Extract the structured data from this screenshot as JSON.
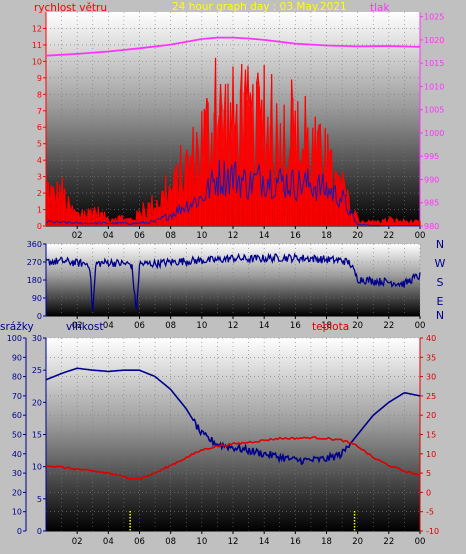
{
  "colors": {
    "background": "#c0c0c0",
    "wind": "#ff0000",
    "gust": "#1a1ab0",
    "pressure": "#ff33ff",
    "direction": "#00008b",
    "humidity": "#00008b",
    "temperature": "#dd0000",
    "rain": "#ffff00"
  },
  "chart_data": [
    {
      "type": "line",
      "title": "24 hour graph day : 03.May.2021",
      "series_labels": {
        "left": "rychlost větru",
        "right": "tlak"
      },
      "x_ticks": [
        "02",
        "04",
        "06",
        "08",
        "10",
        "12",
        "14",
        "16",
        "18",
        "20",
        "22",
        "00"
      ],
      "xlim_hours": [
        0,
        24
      ],
      "left_axis": {
        "ticks": [
          "0",
          "1",
          "2",
          "3",
          "4",
          "5",
          "6",
          "7",
          "8",
          "9",
          "10",
          "11",
          "12"
        ],
        "ylim": [
          0,
          13
        ]
      },
      "right_axis": {
        "ticks": [
          "980",
          "985",
          "990",
          "995",
          "1000",
          "1005",
          "1010",
          "1015",
          "1020",
          "1025"
        ],
        "ylim": [
          980,
          1026
        ]
      },
      "pressure": {
        "x": [
          0,
          2,
          4,
          6,
          8,
          10,
          11,
          12,
          13,
          14,
          16,
          18,
          20,
          22,
          24
        ],
        "y": [
          1016.6,
          1017,
          1017.5,
          1018.2,
          1019,
          1020.2,
          1020.5,
          1020.5,
          1020.3,
          1020,
          1019.2,
          1018.8,
          1018.6,
          1018.7,
          1018.5
        ]
      },
      "wind_envelope": {
        "x": [
          0,
          0.5,
          1,
          1.5,
          2,
          2.5,
          3,
          3.5,
          4,
          4.5,
          5,
          5.5,
          6,
          6.5,
          7,
          7.5,
          8,
          8.5,
          9,
          9.5,
          10,
          10.5,
          11,
          11.5,
          12,
          12.5,
          13,
          13.5,
          14,
          14.5,
          15,
          15.5,
          16,
          16.5,
          17,
          17.5,
          18,
          18.5,
          19,
          19.5,
          20,
          21,
          22,
          23,
          24
        ],
        "y": [
          3.5,
          2.5,
          3,
          1.5,
          1,
          0.8,
          1.5,
          1,
          0.6,
          0.8,
          0.5,
          0.6,
          1,
          1.5,
          2,
          2.5,
          3,
          4,
          5,
          6,
          7.5,
          8.5,
          9,
          9.5,
          9,
          8.5,
          9,
          8,
          8.5,
          8,
          7.5,
          8,
          7.5,
          7,
          6.5,
          6,
          5,
          4,
          3,
          1.5,
          0.5,
          0.3,
          0.5,
          0.4,
          0.3
        ]
      },
      "gust_envelope": {
        "x": [
          0,
          2,
          4,
          6,
          7,
          8,
          9,
          10,
          11,
          12,
          13,
          14,
          15,
          16,
          17,
          18,
          19,
          19.5,
          20,
          22,
          24
        ],
        "y": [
          0.3,
          0.2,
          0.2,
          0.2,
          0.3,
          0.8,
          1.5,
          2,
          3.5,
          3.6,
          3,
          3.5,
          3.2,
          3,
          3,
          2.6,
          2,
          1,
          0.1,
          0,
          0
        ]
      }
    },
    {
      "type": "line",
      "title": "",
      "x_ticks": [
        "02",
        "04",
        "06",
        "08",
        "10",
        "12",
        "14",
        "16",
        "18",
        "20",
        "22",
        "00"
      ],
      "xlim_hours": [
        0,
        24
      ],
      "left_axis": {
        "ticks": [
          "0",
          "90",
          "180",
          "270",
          "360"
        ],
        "ylim": [
          0,
          360
        ]
      },
      "right_labels": [
        "N",
        "W",
        "S",
        "E",
        "N"
      ],
      "direction": {
        "x": [
          0,
          1,
          2,
          2.8,
          3,
          3.2,
          4,
          5,
          5.5,
          5.8,
          6,
          7,
          8,
          9,
          10,
          11,
          12,
          13,
          14,
          15,
          16,
          17,
          18,
          19,
          19.5,
          20,
          21,
          22,
          23,
          23.6,
          24
        ],
        "y": [
          270,
          275,
          265,
          260,
          20,
          262,
          268,
          262,
          258,
          10,
          260,
          262,
          270,
          275,
          278,
          280,
          290,
          285,
          288,
          292,
          290,
          288,
          282,
          278,
          265,
          185,
          175,
          170,
          160,
          190,
          200
        ]
      }
    },
    {
      "type": "line",
      "title": "",
      "series_labels": {
        "rain": "srážky",
        "humidity": "vlhkost",
        "temperature": "teplota"
      },
      "x_ticks": [
        "02",
        "04",
        "06",
        "08",
        "10",
        "12",
        "14",
        "16",
        "18",
        "20",
        "22",
        "00"
      ],
      "xlim_hours": [
        0,
        24
      ],
      "rain_axis": {
        "ticks": [
          "0",
          "10",
          "20",
          "30",
          "40",
          "50",
          "60",
          "70",
          "80",
          "90",
          "100"
        ],
        "ylim": [
          0,
          100
        ]
      },
      "humidity_axis": {
        "ticks": [
          "0",
          "5",
          "10",
          "15",
          "20",
          "25",
          "30"
        ],
        "ylim": [
          0,
          30
        ]
      },
      "temperature_axis": {
        "ticks": [
          "-10",
          "-5",
          "0",
          "5",
          "10",
          "15",
          "20",
          "25",
          "30",
          "35",
          "40"
        ],
        "ylim": [
          -10,
          40
        ]
      },
      "humidity": {
        "x": [
          0,
          1,
          2,
          3,
          4,
          5,
          6,
          7,
          8,
          9,
          10,
          11,
          12,
          13,
          14,
          15,
          16,
          17,
          18,
          19,
          20,
          21,
          22,
          23,
          24
        ],
        "y": [
          23.5,
          24.5,
          25.3,
          25,
          24.8,
          25,
          25,
          24,
          22,
          19,
          15,
          13.5,
          13,
          12.5,
          12,
          11.5,
          11,
          11,
          11.2,
          12,
          15,
          18,
          20,
          21.5,
          21
        ]
      },
      "temperature": {
        "x": [
          0,
          1,
          2,
          3,
          4,
          5,
          6,
          7,
          8,
          9,
          10,
          11,
          12,
          13,
          14,
          15,
          16,
          17,
          18,
          19,
          20,
          21,
          22,
          23,
          24
        ],
        "y": [
          7,
          6.5,
          6,
          5.5,
          5,
          4,
          3.5,
          5,
          7,
          9,
          11,
          12,
          12.5,
          13,
          13.5,
          14,
          14,
          14.2,
          14,
          13.5,
          12,
          9,
          7,
          5.5,
          4.5
        ]
      },
      "rain_markers_hours": [
        5.4,
        19.8
      ]
    }
  ]
}
